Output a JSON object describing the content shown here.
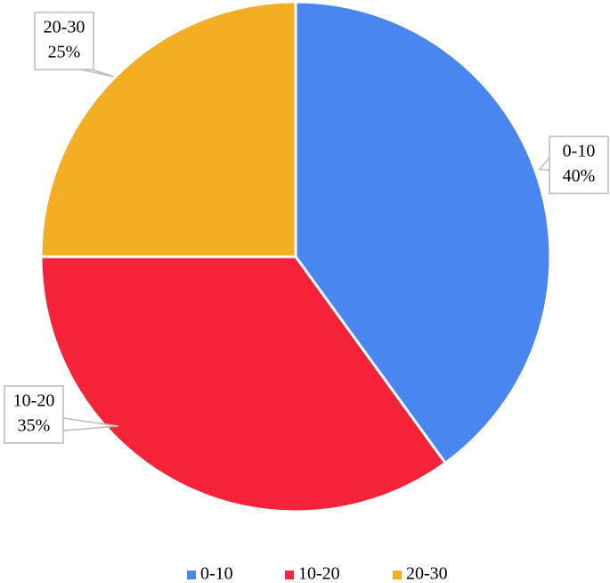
{
  "chart_data": {
    "type": "pie",
    "categories": [
      "0-10",
      "10-20",
      "20-30"
    ],
    "values": [
      40,
      35,
      25
    ],
    "value_labels": [
      "40%",
      "35%",
      "25%"
    ],
    "colors": [
      "#4a86f0",
      "#f5233a",
      "#f4ae24"
    ],
    "legend": "bottom"
  }
}
